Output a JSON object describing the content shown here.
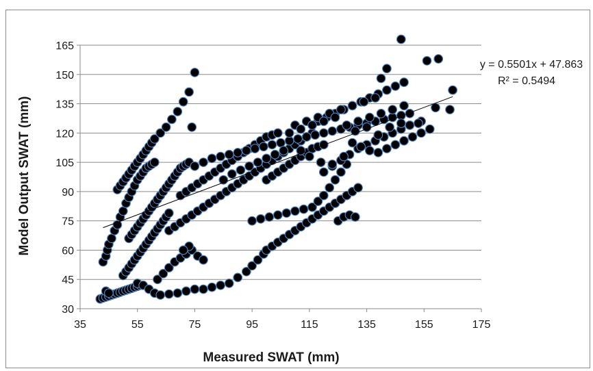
{
  "chart_data": {
    "type": "scatter",
    "title": "",
    "xlabel": "Measured SWAT (mm)",
    "ylabel": "Model Output SWAT (mm)",
    "xlim": [
      35,
      175
    ],
    "ylim": [
      30,
      165
    ],
    "xticks": [
      35,
      55,
      75,
      95,
      115,
      135,
      155,
      175
    ],
    "yticks": [
      30,
      45,
      60,
      75,
      90,
      105,
      120,
      135,
      150,
      165
    ],
    "grid": "horizontal",
    "legend": "none",
    "marker_color": "#000000",
    "marker_edge_color": "#4f81bd",
    "trendline": {
      "slope": 0.5501,
      "intercept": 47.863,
      "x_range": [
        43,
        165
      ],
      "equation": "y = 0.5501x + 47.863",
      "r_squared": "R² = 0.5494"
    },
    "series": [
      {
        "points": [
          [
            42,
            35
          ],
          [
            43,
            35.5
          ],
          [
            44,
            36
          ],
          [
            45,
            36.5
          ],
          [
            46,
            37
          ],
          [
            47,
            37.5
          ],
          [
            48,
            38
          ],
          [
            49,
            38.5
          ],
          [
            50,
            39
          ],
          [
            51,
            39.5
          ],
          [
            52,
            40
          ],
          [
            53,
            40.5
          ],
          [
            54,
            41
          ],
          [
            55,
            41.5
          ],
          [
            56,
            42
          ],
          [
            44,
            39
          ],
          [
            45,
            38
          ],
          [
            43,
            54
          ],
          [
            44,
            57
          ],
          [
            44.5,
            60
          ],
          [
            45,
            63
          ],
          [
            46,
            66
          ],
          [
            47,
            70
          ],
          [
            48,
            73
          ],
          [
            49,
            77
          ],
          [
            50,
            80
          ],
          [
            51,
            84
          ],
          [
            52,
            87
          ],
          [
            53,
            90
          ],
          [
            54,
            93
          ],
          [
            55,
            96
          ],
          [
            56,
            98
          ],
          [
            57,
            100
          ],
          [
            58,
            102
          ],
          [
            59,
            103
          ],
          [
            60,
            104
          ],
          [
            61,
            105
          ],
          [
            48,
            91
          ],
          [
            49,
            93
          ],
          [
            50,
            95
          ],
          [
            51,
            97
          ],
          [
            52,
            99
          ],
          [
            53,
            101
          ],
          [
            54,
            103
          ],
          [
            55,
            105
          ],
          [
            56,
            107
          ],
          [
            57,
            109
          ],
          [
            58,
            111
          ],
          [
            59,
            113
          ],
          [
            60,
            115
          ],
          [
            61,
            117
          ],
          [
            63,
            120
          ],
          [
            65,
            123
          ],
          [
            67,
            127
          ],
          [
            69,
            131
          ],
          [
            71,
            136
          ],
          [
            73,
            141
          ],
          [
            75,
            151
          ],
          [
            74,
            123
          ],
          [
            52,
            66
          ],
          [
            53,
            68
          ],
          [
            54,
            70
          ],
          [
            55,
            72
          ],
          [
            56,
            74
          ],
          [
            57,
            76
          ],
          [
            58,
            78
          ],
          [
            59,
            80
          ],
          [
            60,
            82
          ],
          [
            61,
            84
          ],
          [
            62,
            86
          ],
          [
            63,
            88
          ],
          [
            64,
            90
          ],
          [
            65,
            92
          ],
          [
            66,
            94
          ],
          [
            67,
            96
          ],
          [
            68,
            98
          ],
          [
            69,
            100
          ],
          [
            70,
            102
          ],
          [
            71,
            103
          ],
          [
            72,
            104
          ],
          [
            73,
            105
          ],
          [
            50,
            47
          ],
          [
            51,
            49
          ],
          [
            52,
            51
          ],
          [
            53,
            53
          ],
          [
            54,
            55
          ],
          [
            55,
            57
          ],
          [
            56,
            59
          ],
          [
            57,
            61
          ],
          [
            58,
            63
          ],
          [
            59,
            65
          ],
          [
            60,
            67
          ],
          [
            61,
            69
          ],
          [
            62,
            71
          ],
          [
            63,
            73
          ],
          [
            64,
            75
          ],
          [
            65,
            77
          ],
          [
            66,
            79
          ],
          [
            55,
            43
          ],
          [
            57,
            42
          ],
          [
            59,
            40
          ],
          [
            61,
            38
          ],
          [
            63,
            37
          ],
          [
            66,
            37.5
          ],
          [
            69,
            38
          ],
          [
            72,
            39
          ],
          [
            75,
            40
          ],
          [
            78,
            40
          ],
          [
            81,
            41
          ],
          [
            84,
            42
          ],
          [
            87,
            43
          ],
          [
            90,
            46
          ],
          [
            93,
            49
          ],
          [
            95,
            52
          ],
          [
            97,
            55
          ],
          [
            99,
            58
          ],
          [
            100,
            60
          ],
          [
            102,
            62
          ],
          [
            104,
            64
          ],
          [
            106,
            66
          ],
          [
            108,
            68
          ],
          [
            110,
            70
          ],
          [
            112,
            72
          ],
          [
            114,
            74
          ],
          [
            116,
            76
          ],
          [
            118,
            78
          ],
          [
            120,
            80
          ],
          [
            122,
            82
          ],
          [
            124,
            84
          ],
          [
            126,
            86
          ],
          [
            128,
            88
          ],
          [
            130,
            90
          ],
          [
            132,
            92
          ],
          [
            62,
            45
          ],
          [
            64,
            48
          ],
          [
            66,
            51
          ],
          [
            68,
            54
          ],
          [
            70,
            56
          ],
          [
            72,
            58
          ],
          [
            74,
            60
          ],
          [
            76,
            57
          ],
          [
            78,
            55
          ],
          [
            73,
            62
          ],
          [
            71,
            60
          ],
          [
            70,
            88
          ],
          [
            72,
            90
          ],
          [
            74,
            92
          ],
          [
            76,
            94
          ],
          [
            78,
            96
          ],
          [
            80,
            98
          ],
          [
            82,
            100
          ],
          [
            84,
            102
          ],
          [
            86,
            104
          ],
          [
            88,
            106
          ],
          [
            90,
            108
          ],
          [
            92,
            110
          ],
          [
            94,
            112
          ],
          [
            96,
            114
          ],
          [
            98,
            116
          ],
          [
            100,
            118
          ],
          [
            102,
            119
          ],
          [
            104,
            120
          ],
          [
            66,
            70
          ],
          [
            68,
            72
          ],
          [
            70,
            74
          ],
          [
            72,
            76
          ],
          [
            74,
            78
          ],
          [
            76,
            80
          ],
          [
            78,
            82
          ],
          [
            80,
            84
          ],
          [
            82,
            86
          ],
          [
            84,
            88
          ],
          [
            86,
            90
          ],
          [
            88,
            92
          ],
          [
            90,
            94
          ],
          [
            92,
            96
          ],
          [
            94,
            98
          ],
          [
            96,
            100
          ],
          [
            98,
            102
          ],
          [
            100,
            104
          ],
          [
            102,
            106
          ],
          [
            104,
            108
          ],
          [
            106,
            110
          ],
          [
            108,
            112
          ],
          [
            110,
            114
          ],
          [
            112,
            116
          ],
          [
            114,
            118
          ],
          [
            116,
            120
          ],
          [
            75,
            103
          ],
          [
            78,
            105
          ],
          [
            81,
            107
          ],
          [
            84,
            108
          ],
          [
            87,
            109
          ],
          [
            90,
            110
          ],
          [
            93,
            111
          ],
          [
            96,
            112
          ],
          [
            99,
            113
          ],
          [
            102,
            114
          ],
          [
            105,
            115
          ],
          [
            108,
            116
          ],
          [
            111,
            117
          ],
          [
            114,
            118
          ],
          [
            117,
            119
          ],
          [
            120,
            120
          ],
          [
            123,
            121
          ],
          [
            126,
            122
          ],
          [
            129,
            123
          ],
          [
            132,
            124
          ],
          [
            135,
            125
          ],
          [
            138,
            126
          ],
          [
            141,
            127
          ],
          [
            144,
            128
          ],
          [
            147,
            129
          ],
          [
            150,
            130
          ],
          [
            95,
            75
          ],
          [
            98,
            76
          ],
          [
            101,
            77
          ],
          [
            104,
            78
          ],
          [
            107,
            79
          ],
          [
            110,
            80
          ],
          [
            113,
            81
          ],
          [
            116,
            82
          ],
          [
            118,
            85
          ],
          [
            120,
            88
          ],
          [
            122,
            92
          ],
          [
            124,
            96
          ],
          [
            126,
            100
          ],
          [
            128,
            104
          ],
          [
            100,
            96
          ],
          [
            102,
            98
          ],
          [
            104,
            100
          ],
          [
            106,
            102
          ],
          [
            108,
            104
          ],
          [
            110,
            106
          ],
          [
            112,
            108
          ],
          [
            114,
            110
          ],
          [
            116,
            112
          ],
          [
            118,
            113
          ],
          [
            120,
            114
          ],
          [
            118,
            126
          ],
          [
            121,
            128
          ],
          [
            124,
            130
          ],
          [
            127,
            132
          ],
          [
            130,
            134
          ],
          [
            133,
            136
          ],
          [
            136,
            138
          ],
          [
            139,
            140
          ],
          [
            142,
            142
          ],
          [
            145,
            144
          ],
          [
            148,
            146
          ],
          [
            110,
            124
          ],
          [
            114,
            126
          ],
          [
            118,
            128
          ],
          [
            122,
            130
          ],
          [
            126,
            132
          ],
          [
            130,
            134
          ],
          [
            134,
            136
          ],
          [
            138,
            138
          ],
          [
            140,
            148
          ],
          [
            142,
            153
          ],
          [
            147,
            168
          ],
          [
            160,
            158
          ],
          [
            156,
            157
          ],
          [
            165,
            142
          ],
          [
            164,
            132
          ],
          [
            159,
            133
          ],
          [
            154,
            126
          ],
          [
            150,
            124
          ],
          [
            120,
            100
          ],
          [
            123,
            103
          ],
          [
            126,
            106
          ],
          [
            129,
            109
          ],
          [
            132,
            112
          ],
          [
            135,
            114
          ],
          [
            138,
            116
          ],
          [
            141,
            118
          ],
          [
            144,
            120
          ],
          [
            147,
            122
          ],
          [
            150,
            124
          ],
          [
            153,
            125
          ],
          [
            125,
            75
          ],
          [
            127,
            77
          ],
          [
            129,
            78
          ],
          [
            131,
            77
          ],
          [
            130,
            115
          ],
          [
            133,
            113
          ],
          [
            136,
            111
          ],
          [
            139,
            110
          ],
          [
            142,
            112
          ],
          [
            145,
            114
          ],
          [
            148,
            116
          ],
          [
            151,
            118
          ],
          [
            154,
            120
          ],
          [
            157,
            122
          ],
          [
            112,
            111
          ],
          [
            115,
            108
          ],
          [
            119,
            105
          ],
          [
            123,
            104
          ],
          [
            127,
            108
          ],
          [
            131,
            121
          ],
          [
            135,
            123
          ],
          [
            139,
            119
          ],
          [
            143,
            123
          ],
          [
            147,
            125
          ],
          [
            108,
            120
          ],
          [
            112,
            122
          ],
          [
            116,
            124
          ],
          [
            120,
            126
          ],
          [
            124,
            128
          ],
          [
            128,
            124
          ],
          [
            132,
            126
          ],
          [
            136,
            128
          ],
          [
            140,
            130
          ],
          [
            144,
            132
          ],
          [
            148,
            134
          ],
          [
            85,
            96
          ],
          [
            88,
            99
          ],
          [
            91,
            101
          ],
          [
            94,
            103
          ],
          [
            97,
            105
          ],
          [
            100,
            107
          ],
          [
            103,
            109
          ],
          [
            106,
            111
          ]
        ]
      }
    ]
  }
}
